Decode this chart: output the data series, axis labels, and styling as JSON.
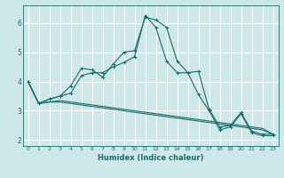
{
  "title": "",
  "xlabel": "Humidex (Indice chaleur)",
  "ylabel": "",
  "bg_color": "#cce8e8",
  "grid_color": "#ffffff",
  "line_color": "#1a6b6b",
  "xlim": [
    -0.5,
    23.5
  ],
  "ylim": [
    1.8,
    6.6
  ],
  "yticks": [
    2,
    3,
    4,
    5,
    6
  ],
  "xticks": [
    0,
    1,
    2,
    3,
    4,
    5,
    6,
    7,
    8,
    9,
    10,
    11,
    12,
    13,
    14,
    15,
    16,
    17,
    18,
    19,
    20,
    21,
    22,
    23
  ],
  "series": [
    {
      "x": [
        0,
        1,
        2,
        3,
        4,
        5,
        6,
        7,
        8,
        9,
        10,
        11,
        12,
        13,
        14,
        15,
        16,
        17,
        18,
        19,
        20,
        21,
        22,
        23
      ],
      "y": [
        4.0,
        3.25,
        3.4,
        3.5,
        3.85,
        4.45,
        4.4,
        4.15,
        4.6,
        5.0,
        5.05,
        6.2,
        6.1,
        5.85,
        4.7,
        4.3,
        4.35,
        3.05,
        2.45,
        2.5,
        2.95,
        2.3,
        2.2,
        2.2
      ],
      "marker": "+"
    },
    {
      "x": [
        0,
        1,
        2,
        3,
        4,
        5,
        6,
        7,
        8,
        9,
        10,
        11,
        12,
        13,
        14,
        15,
        16,
        17,
        18,
        19,
        20,
        21,
        22,
        23
      ],
      "y": [
        4.0,
        3.25,
        3.4,
        3.5,
        3.6,
        4.2,
        4.3,
        4.3,
        4.5,
        4.65,
        4.85,
        6.25,
        5.85,
        4.7,
        4.3,
        4.3,
        3.55,
        3.0,
        2.35,
        2.45,
        2.9,
        2.25,
        2.15,
        2.15
      ],
      "marker": "+"
    },
    {
      "x": [
        0,
        1,
        2,
        3,
        4,
        5,
        6,
        7,
        8,
        9,
        10,
        11,
        12,
        13,
        14,
        15,
        16,
        17,
        18,
        19,
        20,
        21,
        22,
        23
      ],
      "y": [
        4.0,
        3.25,
        3.3,
        3.35,
        3.3,
        3.25,
        3.2,
        3.15,
        3.1,
        3.05,
        3.0,
        2.95,
        2.9,
        2.85,
        2.8,
        2.75,
        2.7,
        2.65,
        2.6,
        2.55,
        2.5,
        2.45,
        2.4,
        2.2
      ],
      "marker": null
    },
    {
      "x": [
        0,
        1,
        2,
        3,
        4,
        5,
        6,
        7,
        8,
        9,
        10,
        11,
        12,
        13,
        14,
        15,
        16,
        17,
        18,
        19,
        20,
        21,
        22,
        23
      ],
      "y": [
        4.0,
        3.25,
        3.3,
        3.3,
        3.25,
        3.2,
        3.15,
        3.1,
        3.05,
        3.0,
        2.95,
        2.9,
        2.85,
        2.8,
        2.75,
        2.7,
        2.65,
        2.6,
        2.55,
        2.5,
        2.45,
        2.4,
        2.35,
        2.2
      ],
      "marker": null
    }
  ]
}
